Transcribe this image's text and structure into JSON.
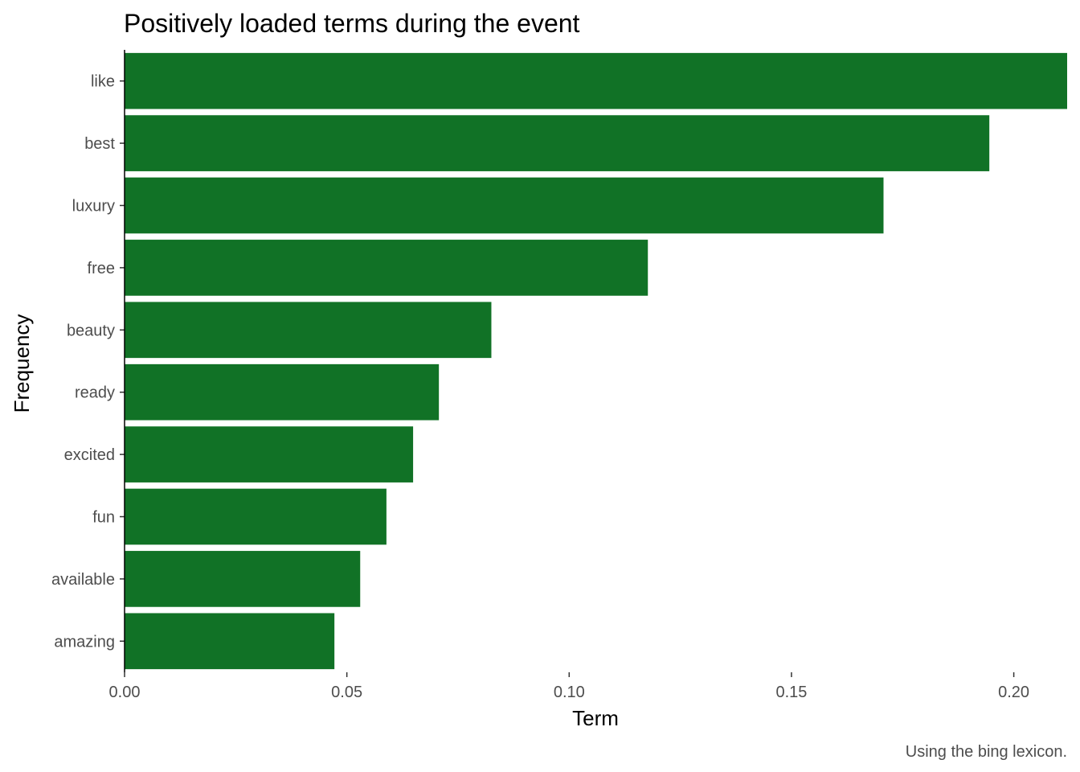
{
  "chart_data": {
    "type": "bar",
    "orientation": "horizontal",
    "title": "Positively loaded terms during the event",
    "xlabel": "Term",
    "ylabel": "Frequency",
    "caption": "Using the bing lexicon.",
    "categories": [
      "like",
      "best",
      "luxury",
      "free",
      "beauty",
      "ready",
      "excited",
      "fun",
      "available",
      "amazing"
    ],
    "values": [
      0.212,
      0.1945,
      0.1707,
      0.1177,
      0.0825,
      0.0707,
      0.0649,
      0.0589,
      0.053,
      0.0472
    ],
    "xlim": [
      0,
      0.212
    ],
    "xticks": [
      0,
      0.05,
      0.1,
      0.15,
      0.2
    ],
    "xtick_labels": [
      "0.00",
      "0.05",
      "0.10",
      "0.15",
      "0.20"
    ],
    "bar_color": "#117226",
    "grid": false,
    "legend": "none"
  }
}
